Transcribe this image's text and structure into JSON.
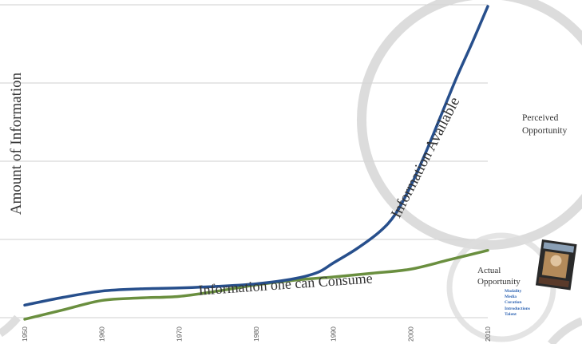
{
  "chart_data": {
    "type": "line",
    "ylabel": "Amount of Information",
    "x_ticks": [
      "1950",
      "1960",
      "1970",
      "1980",
      "1990",
      "2000",
      "2010"
    ],
    "xlim": [
      1950,
      2010
    ],
    "ylim": [
      0,
      100
    ],
    "grid": true,
    "series": [
      {
        "name": "Information Available",
        "color": "#274f8c",
        "x": [
          1950,
          1955,
          1960,
          1965,
          1970,
          1975,
          1980,
          1985,
          1988,
          1990,
          1993,
          1996,
          1998,
          2000,
          2002,
          2004,
          2006,
          2008,
          2010
        ],
        "y": [
          4,
          6.5,
          8.5,
          9.2,
          9.5,
          10,
          10.8,
          12.5,
          14.5,
          17.5,
          22,
          27.5,
          33,
          42,
          53,
          65,
          77,
          88,
          99.5
        ]
      },
      {
        "name": "Information one can Consume",
        "color": "#6a8f3f",
        "x": [
          1950,
          1955,
          1960,
          1965,
          1970,
          1975,
          1980,
          1985,
          1990,
          1995,
          2000,
          2005,
          2010
        ],
        "y": [
          -0.5,
          2.5,
          5.5,
          6.3,
          6.8,
          8.5,
          10.5,
          12,
          13,
          14.2,
          15.5,
          18.5,
          21.5
        ]
      }
    ],
    "annotations": {
      "series_label_1": "Information Available",
      "series_label_2": "Information one can Consume",
      "perceived_line1": "Perceived",
      "perceived_line2": "Opportunity",
      "actual_line1": "Actual",
      "actual_line2": "Opportunity",
      "opportunity_list": [
        "Modality",
        "Media",
        "Curation",
        "Introductions",
        "Talent"
      ]
    }
  }
}
